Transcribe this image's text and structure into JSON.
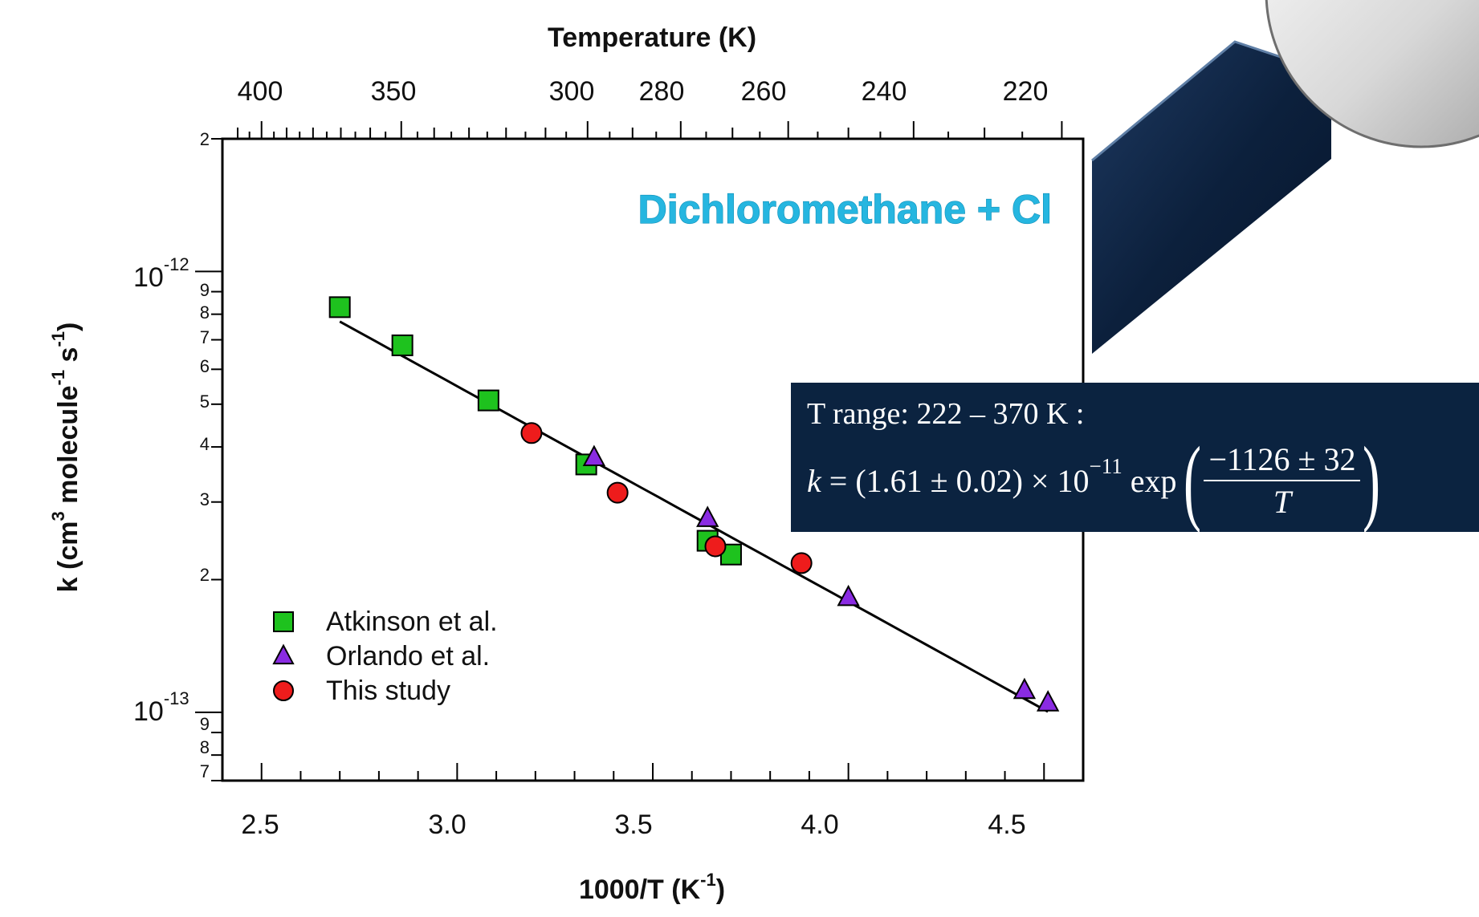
{
  "chart_data": {
    "type": "scatter",
    "title": "Dichloromethane + Cl",
    "xlabel_main": "1000/T (K",
    "xlabel_sup": "-1",
    "xlabel_end": ")",
    "x2label": "Temperature (K)",
    "ylabel": {
      "p1": "k (cm",
      "s1": "3",
      "p2": " molecule",
      "s2": "-1",
      "p3": " s",
      "s3": "-1",
      "p4": ")"
    },
    "xlim": [
      2.4,
      4.6
    ],
    "ylim": [
      7e-14,
      2e-12
    ],
    "yscale": "log",
    "x_ticks": [
      "2.5",
      "3.0",
      "3.5",
      "4.0",
      "4.5"
    ],
    "top_ticks": [
      "400",
      "350",
      "300",
      "280",
      "260",
      "240",
      "220"
    ],
    "y_decade_ticks": [
      {
        "mant": "10",
        "exp": "-12"
      },
      {
        "mant": "10",
        "exp": "-13"
      }
    ],
    "y_minor_ticks": [
      "2",
      "9",
      "8",
      "7",
      "6",
      "5",
      "4",
      "3",
      "2",
      "9",
      "8",
      "7"
    ],
    "series": [
      {
        "name": "Atkinson et al.",
        "marker": "square",
        "color": "#1ec21e",
        "x": [
          2.7,
          2.86,
          3.08,
          3.33,
          3.64,
          3.7
        ],
        "y": [
          8.3e-13,
          6.8e-13,
          5.1e-13,
          3.65e-13,
          2.45e-13,
          2.28e-13
        ]
      },
      {
        "name": "Orlando et al.",
        "marker": "triangle",
        "color": "#8a2be2",
        "x": [
          3.35,
          3.64,
          4.0,
          4.45,
          4.51
        ],
        "y": [
          3.78e-13,
          2.75e-13,
          1.82e-13,
          1.12e-13,
          1.05e-13
        ]
      },
      {
        "name": "This study",
        "marker": "circle",
        "color": "#ee1c1c",
        "x": [
          3.19,
          3.41,
          3.66,
          3.88
        ],
        "y": [
          4.3e-13,
          3.15e-13,
          2.38e-13,
          2.18e-13
        ]
      }
    ],
    "fit": {
      "A": 1.61e-11,
      "E_over_R": 1126,
      "x_range": [
        2.7,
        4.51
      ],
      "color": "#000000"
    },
    "legend_position": "bottom-left"
  },
  "equation": {
    "range_text": "T range: 222 – 370 K :",
    "k": "k",
    "eq_mid": " = (1.61 ± 0.02) × 10",
    "eq_exp": "−11",
    "eq_exp_word": " exp",
    "numerator": "−1126 ± 32",
    "denominator": "T"
  }
}
